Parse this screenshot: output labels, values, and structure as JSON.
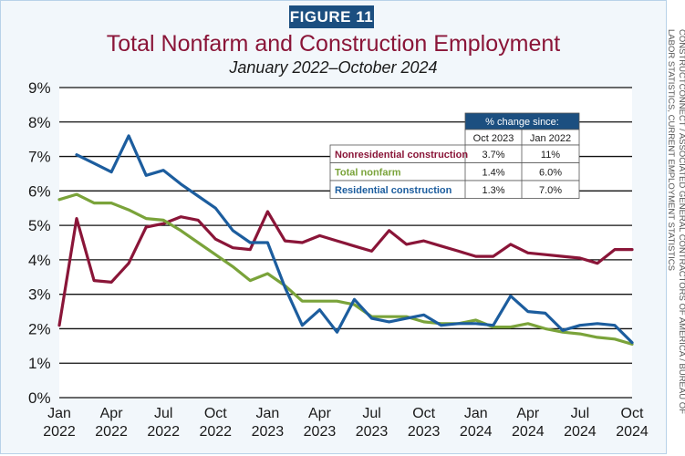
{
  "figure_label": "FIGURE 11",
  "source_note": "CONSTRUCTCONNECT / ASSOCIATED GENERAL CONTRACTORS OF AMERICA / BUREAU OF LABOR STATISTICS, CURRENT EMPLOYMENT STATISTICS",
  "colors": {
    "nonresidential": "#8a1538",
    "total": "#7aa33a",
    "residential": "#1c5d9e",
    "header": "#1c4f80",
    "badge": "#1c4f80"
  },
  "chart_data": {
    "type": "line",
    "title": "Total Nonfarm and Construction Employment",
    "subtitle": "January 2022–October 2024",
    "xlabel": "",
    "ylabel": "",
    "ylim": [
      0,
      9
    ],
    "y_ticks": [
      0,
      1,
      2,
      3,
      4,
      5,
      6,
      7,
      8,
      9
    ],
    "y_tick_labels": [
      "0%",
      "1%",
      "2%",
      "3%",
      "4%",
      "5%",
      "6%",
      "7%",
      "8%",
      "9%"
    ],
    "x_ticks": [
      {
        "index": 0,
        "month": "Jan",
        "year": "2022"
      },
      {
        "index": 3,
        "month": "Apr",
        "year": "2022"
      },
      {
        "index": 6,
        "month": "Jul",
        "year": "2022"
      },
      {
        "index": 9,
        "month": "Oct",
        "year": "2022"
      },
      {
        "index": 12,
        "month": "Jan",
        "year": "2023"
      },
      {
        "index": 15,
        "month": "Apr",
        "year": "2023"
      },
      {
        "index": 18,
        "month": "Jul",
        "year": "2023"
      },
      {
        "index": 21,
        "month": "Oct",
        "year": "2023"
      },
      {
        "index": 24,
        "month": "Jan",
        "year": "2024"
      },
      {
        "index": 27,
        "month": "Apr",
        "year": "2024"
      },
      {
        "index": 30,
        "month": "Jul",
        "year": "2024"
      },
      {
        "index": 33,
        "month": "Oct",
        "year": "2024"
      }
    ],
    "n_points": 34,
    "grid": true,
    "series": [
      {
        "name": "Nonresidential construction",
        "color": "#8a1538",
        "values": [
          2.1,
          5.2,
          3.4,
          3.35,
          3.9,
          4.95,
          5.05,
          5.25,
          5.15,
          4.6,
          4.35,
          4.3,
          5.4,
          4.55,
          4.5,
          4.7,
          4.55,
          4.4,
          4.25,
          4.85,
          4.45,
          4.55,
          4.4,
          4.25,
          4.1,
          4.1,
          4.45,
          4.2,
          4.15,
          4.1,
          4.05,
          3.9,
          4.3,
          4.3
        ]
      },
      {
        "name": "Total nonfarm",
        "color": "#7aa33a",
        "values": [
          5.75,
          5.9,
          5.65,
          5.65,
          5.45,
          5.2,
          5.15,
          4.85,
          4.5,
          4.15,
          3.8,
          3.4,
          3.6,
          3.25,
          2.8,
          2.8,
          2.8,
          2.7,
          2.35,
          2.35,
          2.35,
          2.2,
          2.15,
          2.15,
          2.25,
          2.05,
          2.05,
          2.15,
          2.0,
          1.9,
          1.85,
          1.75,
          1.7,
          1.55
        ]
      },
      {
        "name": "Residential construction",
        "color": "#1c5d9e",
        "values": [
          null,
          7.05,
          6.8,
          6.55,
          7.6,
          6.45,
          6.6,
          6.2,
          5.85,
          5.5,
          4.85,
          4.5,
          4.5,
          3.2,
          2.1,
          2.55,
          1.9,
          2.85,
          2.3,
          2.2,
          2.3,
          2.4,
          2.1,
          2.15,
          2.15,
          2.1,
          2.95,
          2.5,
          2.45,
          1.95,
          2.1,
          2.15,
          2.1,
          1.6
        ]
      }
    ],
    "table": {
      "header": "% change since:",
      "columns": [
        "Oct 2023",
        "Jan 2022"
      ],
      "rows": [
        {
          "label": "Nonresidential construction",
          "values": [
            "3.7%",
            "11%"
          ]
        },
        {
          "label": "Total nonfarm",
          "values": [
            "1.4%",
            "6.0%"
          ]
        },
        {
          "label": "Residential construction",
          "values": [
            "1.3%",
            "7.0%"
          ]
        }
      ]
    }
  }
}
